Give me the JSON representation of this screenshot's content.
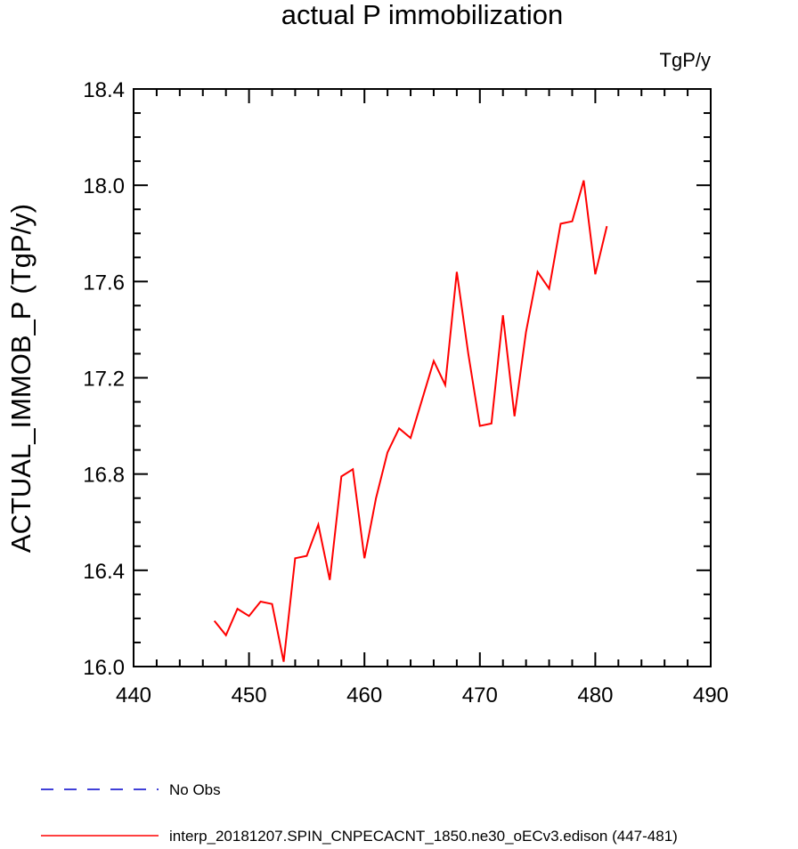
{
  "chart_data": {
    "type": "line",
    "title": "actual P immobilization",
    "units": "TgP/y",
    "ylabel": "ACTUAL_IMMOB_P  (TgP/y)",
    "xlim": [
      440,
      490
    ],
    "ylim": [
      16.0,
      18.4
    ],
    "xticks": [
      440,
      450,
      460,
      470,
      480,
      490
    ],
    "xtick_labels": [
      "440",
      "450",
      "460",
      "470",
      "480",
      "490"
    ],
    "yticks": [
      16.0,
      16.4,
      16.8,
      17.2,
      17.6,
      18.0,
      18.4
    ],
    "ytick_labels": [
      "16.0",
      "16.4",
      "16.8",
      "17.2",
      "17.6",
      "18.0",
      "18.4"
    ],
    "grid": false,
    "legend_position": "bottom",
    "series": [
      {
        "name": "interp_20181207.SPIN_CNPECACNT_1850.ne30_oECv3.edison (447-481)",
        "color": "#ff0000",
        "style": "solid",
        "x": [
          447,
          448,
          449,
          450,
          451,
          452,
          453,
          454,
          455,
          456,
          457,
          458,
          459,
          460,
          461,
          462,
          463,
          464,
          465,
          466,
          467,
          468,
          469,
          470,
          471,
          472,
          473,
          474,
          475,
          476,
          477,
          478,
          479,
          480,
          481
        ],
        "y": [
          16.19,
          16.13,
          16.24,
          16.21,
          16.27,
          16.26,
          16.02,
          16.45,
          16.46,
          16.59,
          16.36,
          16.79,
          16.82,
          16.45,
          16.7,
          16.89,
          16.99,
          16.95,
          17.11,
          17.27,
          17.17,
          17.64,
          17.3,
          17.0,
          17.01,
          17.46,
          17.04,
          17.39,
          17.64,
          17.57,
          17.84,
          17.85,
          18.02,
          17.63,
          17.83
        ]
      }
    ],
    "legend": [
      {
        "label": "No Obs",
        "color": "#0000cc",
        "style": "dashed"
      },
      {
        "label": "interp_20181207.SPIN_CNPECACNT_1850.ne30_oECv3.edison (447-481)",
        "color": "#ff0000",
        "style": "solid"
      }
    ]
  }
}
